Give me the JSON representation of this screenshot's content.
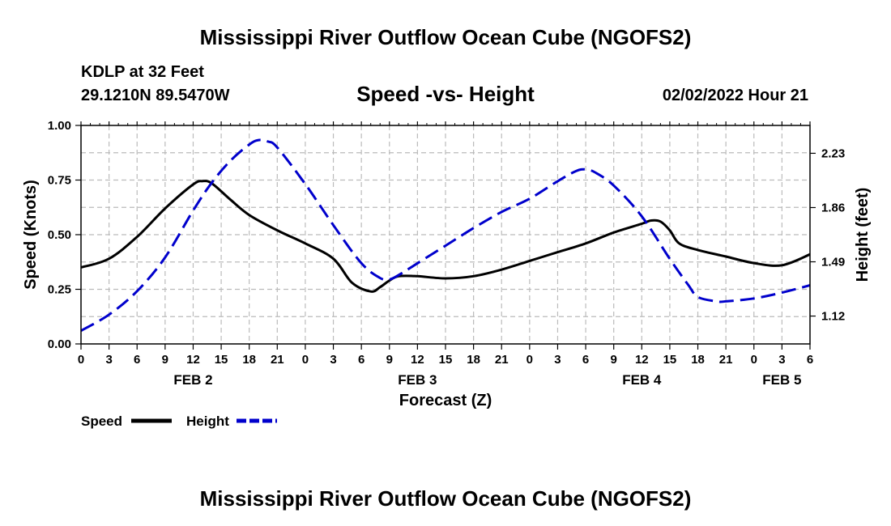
{
  "chart_data": {
    "type": "line",
    "title": "Mississippi River Outflow Ocean Cube (NGOFS2)",
    "station": "KDLP at 32 Feet",
    "location": "29.1210N  89.5470W",
    "subtitle": "Speed -vs- Height",
    "datetime": "02/02/2022 Hour 21",
    "xlabel": "Forecast (Z)",
    "ylabel_left": "Speed (Knots)",
    "ylabel_right": "Height (feet)",
    "hours_range": [
      0,
      78
    ],
    "ylim_left": [
      0,
      1.0
    ],
    "ylim_right": [
      0.93,
      2.42
    ],
    "x_tick_labels": [
      "0",
      "3",
      "6",
      "9",
      "12",
      "15",
      "18",
      "21",
      "0",
      "3",
      "6",
      "9",
      "12",
      "15",
      "18",
      "21",
      "0",
      "3",
      "6",
      "9",
      "12",
      "15",
      "18",
      "21",
      "0",
      "3",
      "6"
    ],
    "date_labels": [
      {
        "label": "FEB 2",
        "hour": 12
      },
      {
        "label": "FEB 3",
        "hour": 36
      },
      {
        "label": "FEB 4",
        "hour": 60
      },
      {
        "label": "FEB 5",
        "hour": 75
      }
    ],
    "left_ticks": [
      0,
      0.25,
      0.5,
      0.75,
      1.0
    ],
    "left_tick_labels": [
      "0.00",
      "0.25",
      "0.50",
      "0.75",
      "1.00"
    ],
    "right_ticks": [
      1.12,
      1.49,
      1.86,
      2.23
    ],
    "right_tick_labels": [
      "1.12",
      "1.49",
      "1.86",
      "2.23"
    ],
    "series": [
      {
        "name": "Speed",
        "axis": "left",
        "color": "#000000",
        "dash": "solid",
        "x": [
          0,
          3,
          6,
          9,
          12,
          13,
          14,
          16,
          18,
          21,
          24,
          27,
          29,
          31,
          32,
          33,
          34,
          36,
          39,
          42,
          45,
          48,
          51,
          54,
          57,
          60,
          61,
          62,
          63,
          64,
          66,
          69,
          72,
          75,
          78
        ],
        "values": [
          0.35,
          0.39,
          0.49,
          0.62,
          0.73,
          0.745,
          0.735,
          0.66,
          0.59,
          0.52,
          0.46,
          0.39,
          0.28,
          0.24,
          0.26,
          0.29,
          0.31,
          0.31,
          0.3,
          0.31,
          0.34,
          0.38,
          0.42,
          0.46,
          0.51,
          0.55,
          0.565,
          0.56,
          0.52,
          0.46,
          0.43,
          0.4,
          0.37,
          0.36,
          0.41
        ]
      },
      {
        "name": "Height",
        "axis": "right",
        "color": "#0000cc",
        "dash": "dashed",
        "x": [
          0,
          3,
          6,
          9,
          12,
          14,
          16,
          18,
          19,
          20,
          21,
          24,
          27,
          30,
          32,
          33,
          34,
          36,
          39,
          42,
          45,
          48,
          51,
          53,
          54,
          55,
          57,
          60,
          63,
          65,
          66,
          68,
          69,
          72,
          75,
          78
        ],
        "values": [
          1.02,
          1.13,
          1.29,
          1.52,
          1.84,
          2.03,
          2.18,
          2.29,
          2.32,
          2.31,
          2.27,
          2.02,
          1.74,
          1.48,
          1.38,
          1.37,
          1.4,
          1.48,
          1.6,
          1.72,
          1.83,
          1.92,
          2.04,
          2.11,
          2.12,
          2.1,
          2.01,
          1.8,
          1.51,
          1.33,
          1.25,
          1.22,
          1.22,
          1.24,
          1.28,
          1.33
        ]
      }
    ],
    "legend": [
      {
        "label": "Speed",
        "color": "#000000",
        "dash": "solid"
      },
      {
        "label": "Height",
        "color": "#0000cc",
        "dash": "dashed"
      }
    ],
    "footer_title": "Mississippi River Outflow Ocean Cube (NGOFS2)"
  }
}
